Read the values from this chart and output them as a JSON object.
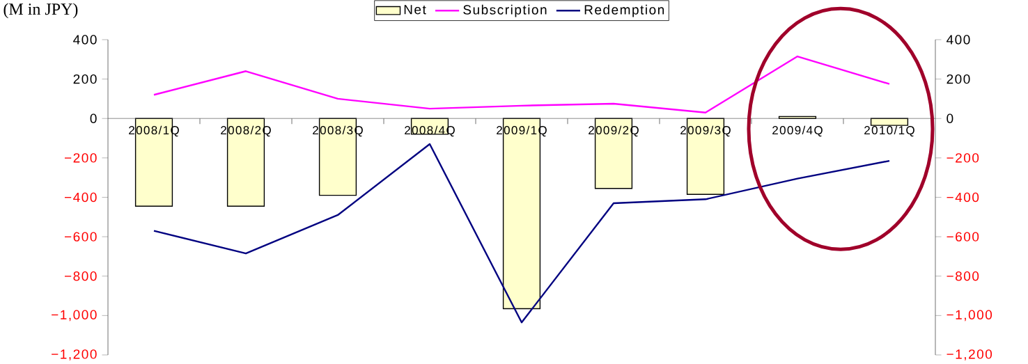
{
  "chart_data": {
    "type": "bar",
    "ylabel": "(M in JPY)",
    "categories": [
      "2008/1Q",
      "2008/2Q",
      "2008/3Q",
      "2008/4Q",
      "2009/1Q",
      "2009/2Q",
      "2009/3Q",
      "2009/4Q",
      "2010/1Q"
    ],
    "series": [
      {
        "name": "Net",
        "color": "#ffffcc",
        "values": [
          -445,
          -445,
          -390,
          -80,
          -965,
          -355,
          -385,
          10,
          -35
        ]
      },
      {
        "name": "Subscription",
        "type": "line",
        "color": "#ff00ff",
        "values": [
          120,
          240,
          100,
          50,
          65,
          75,
          30,
          315,
          175
        ]
      },
      {
        "name": "Redemption",
        "type": "line",
        "color": "#000080",
        "values": [
          -570,
          -685,
          -490,
          -130,
          -1035,
          -430,
          -410,
          -305,
          -215
        ]
      }
    ],
    "ylim": [
      -1200,
      400
    ],
    "yticks": [
      {
        "value": -1200,
        "label": "−1,200"
      },
      {
        "value": -1000,
        "label": "−1,000"
      },
      {
        "value": -800,
        "label": "−800"
      },
      {
        "value": -600,
        "label": "−600"
      },
      {
        "value": -400,
        "label": "−400"
      },
      {
        "value": -200,
        "label": "−200"
      },
      0,
      200,
      400
    ],
    "y2lim": [
      -1200,
      400
    ],
    "y2ticks": [
      {
        "value": -1200,
        "label": "−1,200"
      },
      {
        "value": -1000,
        "label": "−1,000"
      },
      {
        "value": -800,
        "label": "−800"
      },
      {
        "value": -600,
        "label": "−600"
      },
      {
        "value": -400,
        "label": "−400"
      },
      {
        "value": -200,
        "label": "−200"
      },
      0,
      200,
      400
    ],
    "legend": "top"
  }
}
